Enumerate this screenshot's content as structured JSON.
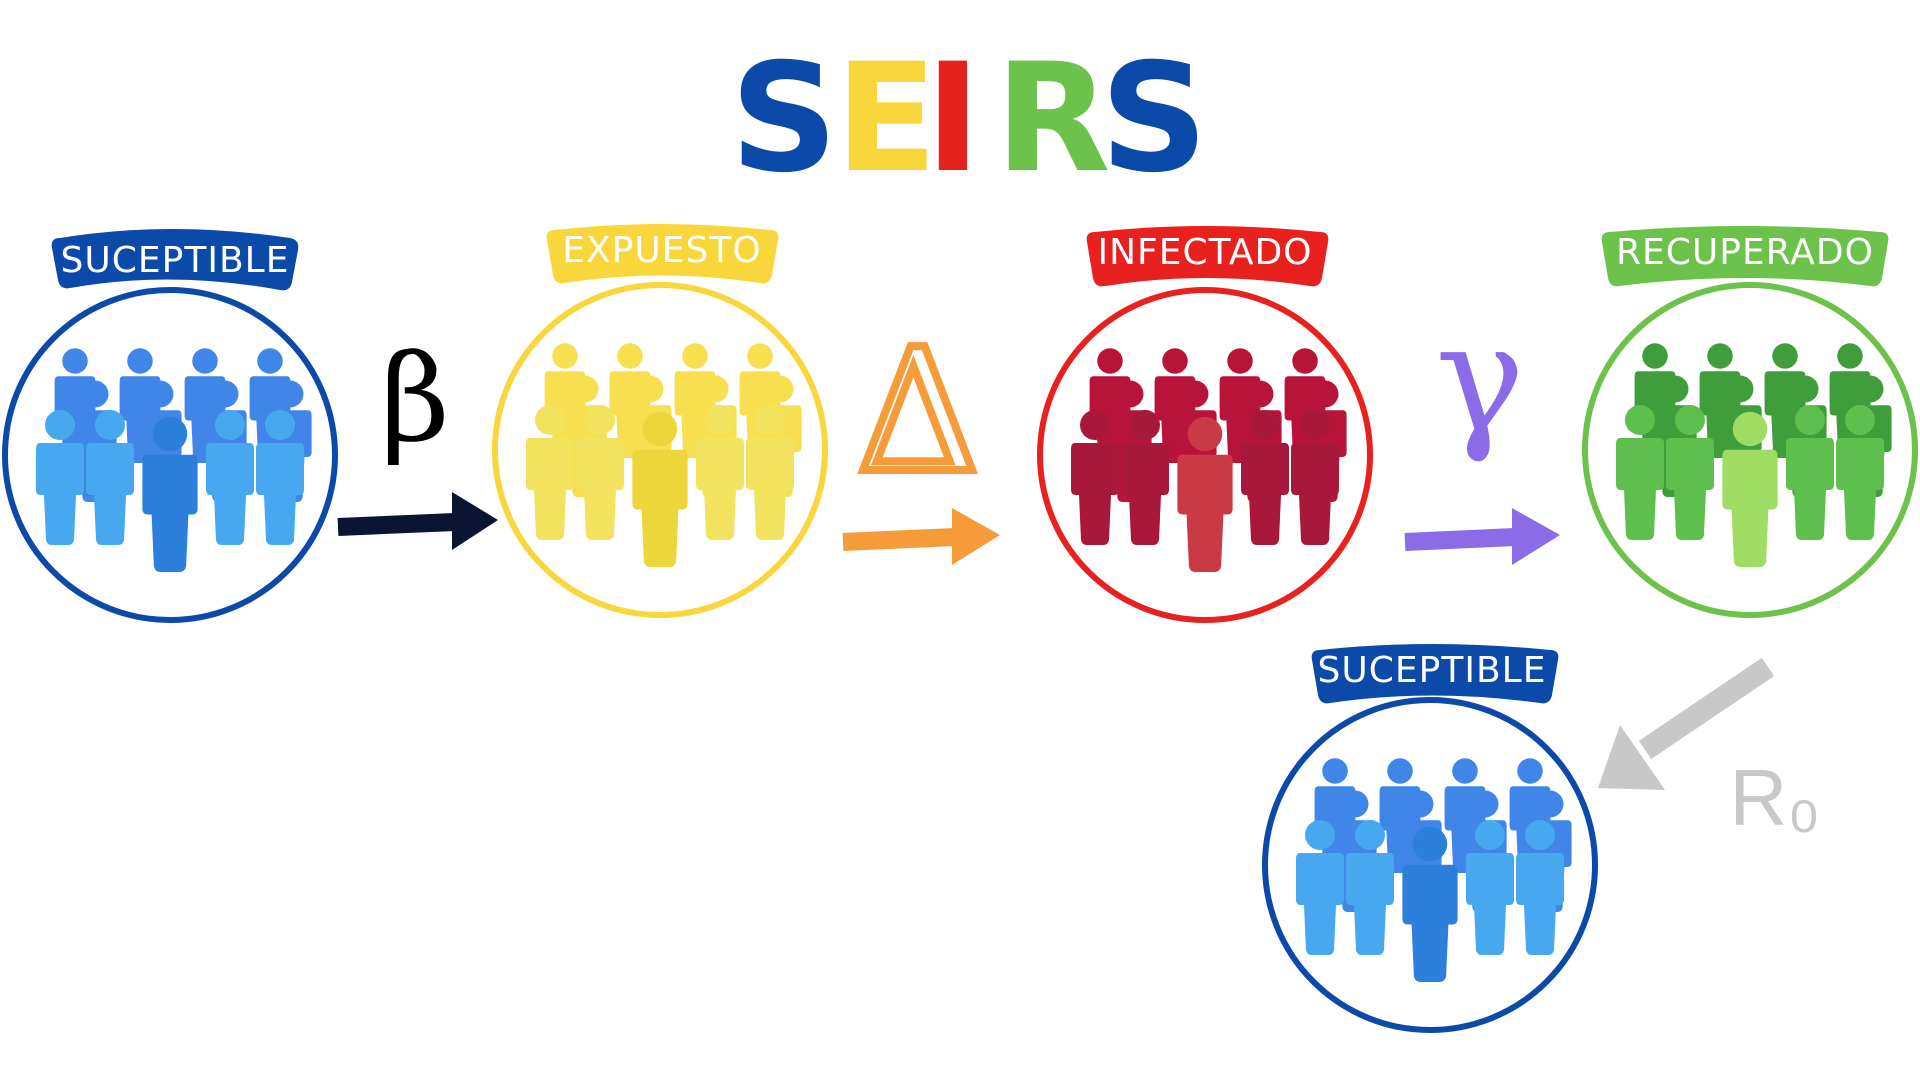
{
  "title_letters": [
    {
      "char": "S",
      "color": "#0b4aa8"
    },
    {
      "char": "E",
      "color": "#f8d63c"
    },
    {
      "char": "I",
      "color": "#e8211e"
    },
    {
      "char": "R",
      "color": "#6cc24a"
    },
    {
      "char": "S",
      "color": "#0b4aa8"
    }
  ],
  "nodes": [
    {
      "id": "susceptible",
      "label": "SUCEPTIBLE",
      "color": "#0b4aa8",
      "people_colors": [
        "#3f86e8",
        "#47a8f0",
        "#2c80db"
      ]
    },
    {
      "id": "exposed",
      "label": "EXPUESTO",
      "color": "#f8d63c",
      "people_colors": [
        "#f7df4f",
        "#f3e25e",
        "#ecd63a"
      ]
    },
    {
      "id": "infected",
      "label": "INFECTADO",
      "color": "#e8211e",
      "people_colors": [
        "#b8143a",
        "#a8183a",
        "#c93a44"
      ]
    },
    {
      "id": "recovered",
      "label": "RECUPERADO",
      "color": "#6cc24a",
      "people_colors": [
        "#3f9e3b",
        "#5fbf4e",
        "#9fdc63"
      ]
    },
    {
      "id": "susceptible-return",
      "label": "SUCEPTIBLE",
      "color": "#0b4aa8",
      "people_colors": [
        "#3f86e8",
        "#47a8f0",
        "#2c80db"
      ]
    }
  ],
  "transitions": [
    {
      "symbol": "β",
      "arrow_color": "#0b1433",
      "symbol_color": "#000000"
    },
    {
      "symbol": "Δ",
      "arrow_color": "#f59b3a",
      "symbol_color": "#f59b3a"
    },
    {
      "symbol": "γ",
      "arrow_color": "#8b6be8",
      "symbol_color": "#8b6be8"
    },
    {
      "symbol": "R₀",
      "arrow_color": "#c8c8c8",
      "symbol_color": "#c8c8c8"
    }
  ]
}
